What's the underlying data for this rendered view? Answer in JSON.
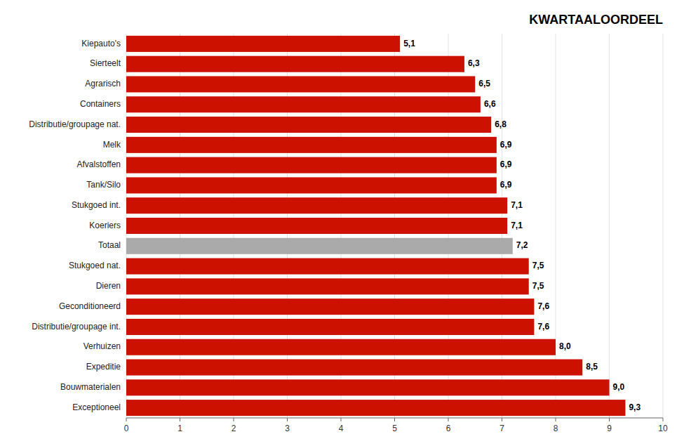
{
  "chart_data": {
    "type": "bar",
    "orientation": "horizontal",
    "title": "KWARTAALOORDEEL",
    "categories": [
      "Kiepauto's",
      "Sierteelt",
      "Agrarisch",
      "Containers",
      "Distributie/groupage nat.",
      "Melk",
      "Afvalstoffen",
      "Tank/Silo",
      "Stukgoed int.",
      "Koeriers",
      "Totaal",
      "Stukgoed nat.",
      "Dieren",
      "Geconditioneerd",
      "Distributie/groupage int.",
      "Verhuizen",
      "Expeditie",
      "Bouwmaterialen",
      "Exceptioneel"
    ],
    "values": [
      5.1,
      6.3,
      6.5,
      6.6,
      6.8,
      6.9,
      6.9,
      6.9,
      7.1,
      7.1,
      7.2,
      7.5,
      7.5,
      7.6,
      7.6,
      8.0,
      8.5,
      9.0,
      9.3
    ],
    "value_labels": [
      "5,1",
      "6,3",
      "6,5",
      "6,6",
      "6,8",
      "6,9",
      "6,9",
      "6,9",
      "7,1",
      "7,1",
      "7,2",
      "7,5",
      "7,5",
      "7,6",
      "7,6",
      "8,0",
      "8,5",
      "9,0",
      "9,3"
    ],
    "colors": [
      "#CC1100",
      "#CC1100",
      "#CC1100",
      "#CC1100",
      "#CC1100",
      "#CC1100",
      "#CC1100",
      "#CC1100",
      "#CC1100",
      "#CC1100",
      "#AAAAAA",
      "#CC1100",
      "#CC1100",
      "#CC1100",
      "#CC1100",
      "#CC1100",
      "#CC1100",
      "#CC1100",
      "#CC1100"
    ],
    "xlim": [
      0,
      10
    ],
    "xticks": [
      0,
      1,
      2,
      3,
      4,
      5,
      6,
      7,
      8,
      9,
      10
    ],
    "grid": true,
    "data_labels": true
  }
}
